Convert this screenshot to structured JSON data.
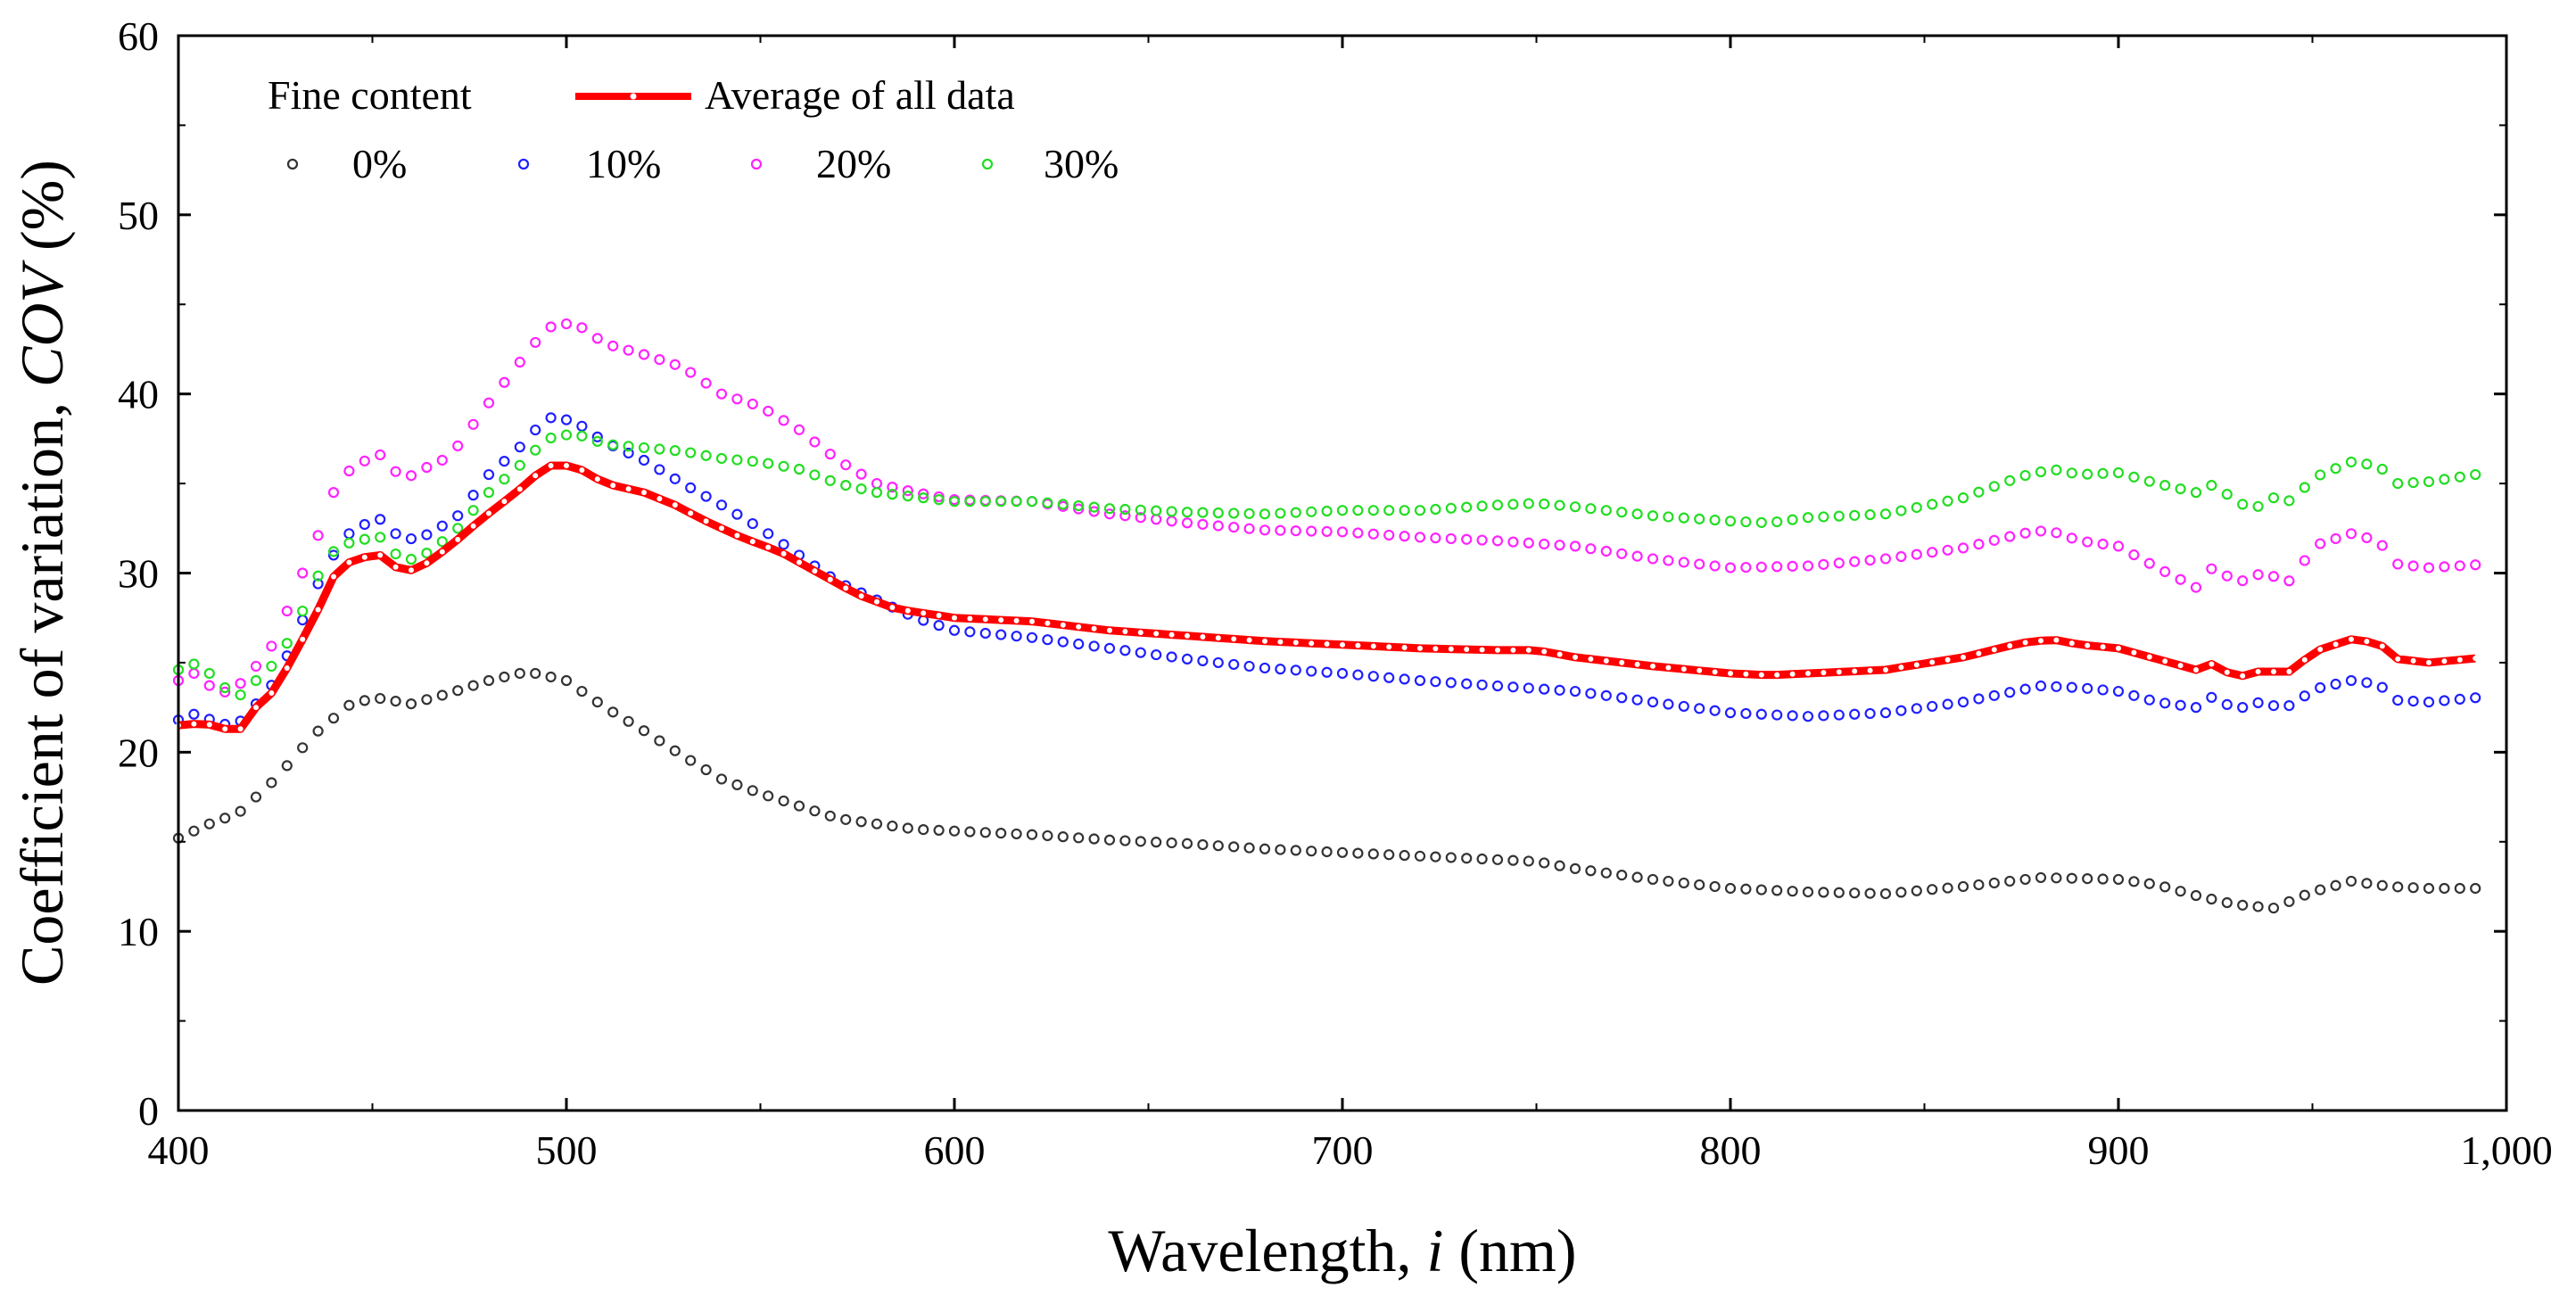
{
  "chart_data": {
    "type": "scatter",
    "title": "",
    "xlabel_prefix": "Wavelength, ",
    "xlabel_italic": "i",
    "xlabel_suffix": " (nm)",
    "ylabel_prefix": "Coefficient of variation, ",
    "ylabel_italic": "COV",
    "ylabel_suffix": " (%)",
    "xlim": [
      400,
      1000
    ],
    "ylim": [
      0,
      60
    ],
    "xticks": [
      400,
      500,
      600,
      700,
      800,
      900,
      1000
    ],
    "xtick_labels": [
      "400",
      "500",
      "600",
      "700",
      "800",
      "900",
      "1,000"
    ],
    "yticks": [
      0,
      10,
      20,
      30,
      40,
      50,
      60
    ],
    "ytick_labels": [
      "0",
      "10",
      "20",
      "30",
      "40",
      "50",
      "60"
    ],
    "legend_title": "Fine content",
    "legend_position": "top-left",
    "colors": {
      "fine_0": "#333333",
      "fine_10": "#1f1fff",
      "fine_20": "#ff22ff",
      "fine_30": "#22dd22",
      "average": "#ff0000"
    },
    "series": [
      {
        "key": "fine_0",
        "name": "0%",
        "style": "markers",
        "points": [
          [
            400,
            15.2
          ],
          [
            410,
            16.2
          ],
          [
            415,
            16.5
          ],
          [
            425,
            18.5
          ],
          [
            435,
            21
          ],
          [
            445,
            22.8
          ],
          [
            452,
            23
          ],
          [
            460,
            22.7
          ],
          [
            470,
            23.3
          ],
          [
            480,
            24
          ],
          [
            490,
            24.5
          ],
          [
            500,
            24
          ],
          [
            510,
            22.5
          ],
          [
            520,
            21.2
          ],
          [
            530,
            19.8
          ],
          [
            540,
            18.5
          ],
          [
            550,
            17.7
          ],
          [
            560,
            17
          ],
          [
            570,
            16.3
          ],
          [
            580,
            16
          ],
          [
            590,
            15.7
          ],
          [
            600,
            15.6
          ],
          [
            620,
            15.4
          ],
          [
            640,
            15.1
          ],
          [
            660,
            14.9
          ],
          [
            680,
            14.6
          ],
          [
            700,
            14.4
          ],
          [
            720,
            14.2
          ],
          [
            740,
            14
          ],
          [
            750,
            13.9
          ],
          [
            760,
            13.5
          ],
          [
            780,
            12.9
          ],
          [
            800,
            12.4
          ],
          [
            820,
            12.2
          ],
          [
            840,
            12.1
          ],
          [
            860,
            12.5
          ],
          [
            880,
            13
          ],
          [
            900,
            12.9
          ],
          [
            910,
            12.6
          ],
          [
            920,
            12
          ],
          [
            930,
            11.5
          ],
          [
            940,
            11.3
          ],
          [
            950,
            12.2
          ],
          [
            960,
            12.8
          ],
          [
            970,
            12.5
          ],
          [
            980,
            12.4
          ],
          [
            995,
            12.4
          ]
        ]
      },
      {
        "key": "fine_10",
        "name": "10%",
        "style": "markers",
        "points": [
          [
            400,
            21.8
          ],
          [
            405,
            22.2
          ],
          [
            410,
            21.6
          ],
          [
            415,
            21.5
          ],
          [
            420,
            22.7
          ],
          [
            425,
            24
          ],
          [
            430,
            26.3
          ],
          [
            435,
            29
          ],
          [
            440,
            31
          ],
          [
            445,
            32.5
          ],
          [
            452,
            33
          ],
          [
            458,
            31.8
          ],
          [
            465,
            32.2
          ],
          [
            472,
            33.2
          ],
          [
            480,
            35.5
          ],
          [
            487,
            36.8
          ],
          [
            495,
            38.7
          ],
          [
            502,
            38.5
          ],
          [
            510,
            37.3
          ],
          [
            520,
            36.3
          ],
          [
            530,
            35
          ],
          [
            540,
            33.8
          ],
          [
            550,
            32.5
          ],
          [
            560,
            31
          ],
          [
            570,
            29.5
          ],
          [
            580,
            28.5
          ],
          [
            590,
            27.5
          ],
          [
            600,
            26.8
          ],
          [
            620,
            26.4
          ],
          [
            640,
            25.8
          ],
          [
            660,
            25.2
          ],
          [
            680,
            24.7
          ],
          [
            700,
            24.4
          ],
          [
            720,
            24
          ],
          [
            740,
            23.7
          ],
          [
            760,
            23.4
          ],
          [
            780,
            22.8
          ],
          [
            800,
            22.2
          ],
          [
            820,
            22
          ],
          [
            840,
            22.2
          ],
          [
            860,
            22.8
          ],
          [
            880,
            23.7
          ],
          [
            890,
            23.6
          ],
          [
            900,
            23.4
          ],
          [
            910,
            22.8
          ],
          [
            920,
            22.5
          ],
          [
            925,
            23.2
          ],
          [
            930,
            22.3
          ],
          [
            935,
            22.8
          ],
          [
            940,
            22.6
          ],
          [
            945,
            22.6
          ],
          [
            950,
            23.5
          ],
          [
            960,
            24
          ],
          [
            967,
            23.8
          ],
          [
            972,
            22.9
          ],
          [
            980,
            22.8
          ],
          [
            995,
            23.1
          ]
        ]
      },
      {
        "key": "fine_20",
        "name": "20%",
        "style": "markers",
        "points": [
          [
            400,
            24
          ],
          [
            405,
            24.5
          ],
          [
            410,
            23.2
          ],
          [
            415,
            23.6
          ],
          [
            420,
            24.8
          ],
          [
            425,
            26.2
          ],
          [
            430,
            29
          ],
          [
            435,
            31.5
          ],
          [
            440,
            34.5
          ],
          [
            445,
            36
          ],
          [
            452,
            36.6
          ],
          [
            458,
            35.2
          ],
          [
            463,
            35.8
          ],
          [
            470,
            36.5
          ],
          [
            480,
            39.5
          ],
          [
            487,
            41.5
          ],
          [
            495,
            43.7
          ],
          [
            502,
            44
          ],
          [
            510,
            42.8
          ],
          [
            520,
            42.2
          ],
          [
            530,
            41.5
          ],
          [
            540,
            40
          ],
          [
            550,
            39.3
          ],
          [
            560,
            38
          ],
          [
            570,
            36.3
          ],
          [
            580,
            35
          ],
          [
            590,
            34.5
          ],
          [
            600,
            34.1
          ],
          [
            620,
            34
          ],
          [
            640,
            33.3
          ],
          [
            660,
            32.8
          ],
          [
            680,
            32.4
          ],
          [
            700,
            32.3
          ],
          [
            720,
            32
          ],
          [
            740,
            31.8
          ],
          [
            760,
            31.5
          ],
          [
            780,
            30.8
          ],
          [
            800,
            30.3
          ],
          [
            820,
            30.4
          ],
          [
            840,
            30.8
          ],
          [
            860,
            31.4
          ],
          [
            875,
            32.2
          ],
          [
            882,
            32.4
          ],
          [
            890,
            31.8
          ],
          [
            900,
            31.5
          ],
          [
            910,
            30.3
          ],
          [
            920,
            29.2
          ],
          [
            925,
            30.5
          ],
          [
            930,
            29.4
          ],
          [
            937,
            30
          ],
          [
            945,
            29.5
          ],
          [
            950,
            31.5
          ],
          [
            960,
            32.2
          ],
          [
            967,
            31.8
          ],
          [
            972,
            30.5
          ],
          [
            980,
            30.3
          ],
          [
            995,
            30.5
          ]
        ]
      },
      {
        "key": "fine_30",
        "name": "30%",
        "style": "markers",
        "points": [
          [
            400,
            24.6
          ],
          [
            405,
            25
          ],
          [
            410,
            24
          ],
          [
            415,
            23
          ],
          [
            420,
            24
          ],
          [
            425,
            25
          ],
          [
            430,
            26.8
          ],
          [
            435,
            29.5
          ],
          [
            440,
            31.2
          ],
          [
            445,
            31.8
          ],
          [
            452,
            32
          ],
          [
            458,
            30.6
          ],
          [
            465,
            31.2
          ],
          [
            472,
            32.5
          ],
          [
            480,
            34.5
          ],
          [
            487,
            35.8
          ],
          [
            495,
            37.5
          ],
          [
            502,
            37.8
          ],
          [
            510,
            37.2
          ],
          [
            520,
            37
          ],
          [
            530,
            36.8
          ],
          [
            540,
            36.4
          ],
          [
            550,
            36.2
          ],
          [
            560,
            35.8
          ],
          [
            570,
            35
          ],
          [
            580,
            34.5
          ],
          [
            600,
            34
          ],
          [
            620,
            34
          ],
          [
            640,
            33.6
          ],
          [
            660,
            33.4
          ],
          [
            680,
            33.3
          ],
          [
            700,
            33.5
          ],
          [
            720,
            33.5
          ],
          [
            740,
            33.8
          ],
          [
            750,
            33.9
          ],
          [
            760,
            33.7
          ],
          [
            780,
            33.2
          ],
          [
            800,
            32.9
          ],
          [
            810,
            32.8
          ],
          [
            820,
            33.1
          ],
          [
            840,
            33.3
          ],
          [
            860,
            34.2
          ],
          [
            875,
            35.4
          ],
          [
            883,
            35.8
          ],
          [
            890,
            35.5
          ],
          [
            900,
            35.6
          ],
          [
            910,
            35
          ],
          [
            920,
            34.5
          ],
          [
            925,
            35
          ],
          [
            930,
            34
          ],
          [
            935,
            33.6
          ],
          [
            940,
            34.2
          ],
          [
            945,
            34
          ],
          [
            950,
            35.3
          ],
          [
            960,
            36.2
          ],
          [
            967,
            36
          ],
          [
            972,
            35
          ],
          [
            980,
            35.1
          ],
          [
            995,
            35.6
          ]
        ]
      },
      {
        "key": "average",
        "name": "Average of all data",
        "style": "line-markers",
        "points": [
          [
            400,
            21.5
          ],
          [
            405,
            21.6
          ],
          [
            410,
            21.5
          ],
          [
            415,
            21
          ],
          [
            420,
            22.5
          ],
          [
            425,
            23.5
          ],
          [
            430,
            25.5
          ],
          [
            435,
            27.5
          ],
          [
            440,
            29.8
          ],
          [
            445,
            30.8
          ],
          [
            452,
            31
          ],
          [
            458,
            30
          ],
          [
            463,
            30.4
          ],
          [
            470,
            31.5
          ],
          [
            478,
            33
          ],
          [
            487,
            34.5
          ],
          [
            495,
            36
          ],
          [
            502,
            36
          ],
          [
            510,
            35
          ],
          [
            520,
            34.5
          ],
          [
            528,
            33.8
          ],
          [
            535,
            33
          ],
          [
            545,
            32
          ],
          [
            555,
            31.2
          ],
          [
            565,
            30
          ],
          [
            575,
            28.8
          ],
          [
            585,
            28
          ],
          [
            600,
            27.5
          ],
          [
            620,
            27.3
          ],
          [
            640,
            26.8
          ],
          [
            660,
            26.5
          ],
          [
            680,
            26.2
          ],
          [
            700,
            26
          ],
          [
            720,
            25.8
          ],
          [
            740,
            25.7
          ],
          [
            750,
            25.7
          ],
          [
            760,
            25.3
          ],
          [
            780,
            24.8
          ],
          [
            800,
            24.4
          ],
          [
            810,
            24.3
          ],
          [
            820,
            24.4
          ],
          [
            840,
            24.6
          ],
          [
            860,
            25.3
          ],
          [
            875,
            26.1
          ],
          [
            883,
            26.3
          ],
          [
            890,
            26
          ],
          [
            900,
            25.8
          ],
          [
            910,
            25.2
          ],
          [
            920,
            24.6
          ],
          [
            925,
            25
          ],
          [
            930,
            24.1
          ],
          [
            935,
            24.5
          ],
          [
            940,
            24.5
          ],
          [
            945,
            24.5
          ],
          [
            950,
            25.6
          ],
          [
            960,
            26.3
          ],
          [
            967,
            26.1
          ],
          [
            972,
            25.2
          ],
          [
            980,
            25
          ],
          [
            995,
            25.3
          ]
        ]
      }
    ]
  }
}
